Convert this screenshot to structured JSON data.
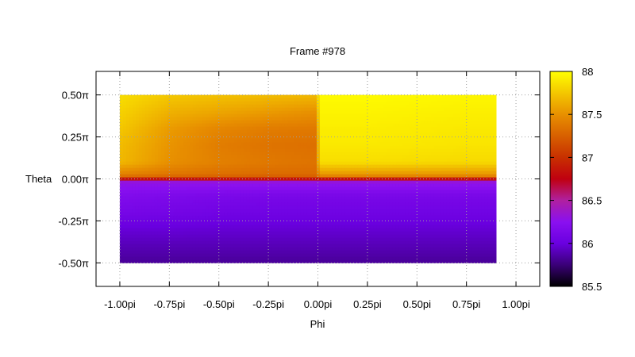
{
  "chart_data": {
    "type": "heatmap",
    "title": "Frame #978",
    "xlabel": "Phi",
    "ylabel": "Theta",
    "x_ticks": [
      "-1.00pi",
      "-0.75pi",
      "-0.50pi",
      "-0.25pi",
      "0.00pi",
      "0.25pi",
      "0.50pi",
      "0.75pi",
      "1.00pi"
    ],
    "y_ticks": [
      "0.50π",
      "0.25π",
      "0.00π",
      "-0.25π",
      "-0.50π"
    ],
    "xlim": [
      -1.12,
      1.12
    ],
    "ylim": [
      -0.64,
      0.64
    ],
    "data_extent": {
      "x": [
        -1.0,
        0.9
      ],
      "y": [
        -0.5,
        0.5
      ]
    },
    "grid": true,
    "colorbar": {
      "ticks": [
        "88",
        "87.5",
        "87",
        "86.5",
        "86",
        "85.5"
      ],
      "range": [
        85.5,
        88.0
      ],
      "colormap": [
        {
          "value": 85.5,
          "color": "#000000"
        },
        {
          "value": 85.75,
          "color": "#3a0078"
        },
        {
          "value": 86.0,
          "color": "#6a00e0"
        },
        {
          "value": 86.25,
          "color": "#8a10f0"
        },
        {
          "value": 86.5,
          "color": "#b020a0"
        },
        {
          "value": 86.75,
          "color": "#c00010"
        },
        {
          "value": 87.0,
          "color": "#c83000"
        },
        {
          "value": 87.5,
          "color": "#e89000"
        },
        {
          "value": 88.0,
          "color": "#ffff00"
        }
      ]
    },
    "theta_values": [
      0.5,
      0.4,
      0.3,
      0.2,
      0.1,
      0.02,
      0.0,
      -0.02,
      -0.1,
      -0.2,
      -0.3,
      -0.4,
      -0.5
    ],
    "phi_values": [
      -1.0,
      -0.75,
      -0.5,
      -0.25,
      -0.01,
      0.01,
      0.25,
      0.5,
      0.75,
      0.9
    ],
    "z_values": [
      [
        87.85,
        87.75,
        87.72,
        87.7,
        87.68,
        87.98,
        87.98,
        87.97,
        87.96,
        87.96
      ],
      [
        87.8,
        87.65,
        87.6,
        87.55,
        87.5,
        87.95,
        87.95,
        87.94,
        87.93,
        87.93
      ],
      [
        87.75,
        87.55,
        87.45,
        87.4,
        87.38,
        87.92,
        87.92,
        87.91,
        87.9,
        87.9
      ],
      [
        87.7,
        87.52,
        87.4,
        87.35,
        87.33,
        87.9,
        87.9,
        87.89,
        87.88,
        87.88
      ],
      [
        87.68,
        87.5,
        87.42,
        87.38,
        87.35,
        87.85,
        87.85,
        87.84,
        87.83,
        87.83
      ],
      [
        87.4,
        87.35,
        87.32,
        87.3,
        87.3,
        87.5,
        87.5,
        87.5,
        87.5,
        87.5
      ],
      [
        86.85,
        86.85,
        86.85,
        86.85,
        86.85,
        86.85,
        86.85,
        86.85,
        86.85,
        86.85
      ],
      [
        86.3,
        86.3,
        86.3,
        86.3,
        86.3,
        86.3,
        86.3,
        86.3,
        86.3,
        86.3
      ],
      [
        86.18,
        86.15,
        86.13,
        86.12,
        86.12,
        86.12,
        86.12,
        86.12,
        86.12,
        86.12
      ],
      [
        86.1,
        86.08,
        86.06,
        86.05,
        86.05,
        86.05,
        86.05,
        86.05,
        86.05,
        86.05
      ],
      [
        85.98,
        85.98,
        85.97,
        85.97,
        85.97,
        85.97,
        85.97,
        85.97,
        85.97,
        85.97
      ],
      [
        85.9,
        85.9,
        85.9,
        85.9,
        85.9,
        85.9,
        85.9,
        85.9,
        85.9,
        85.9
      ],
      [
        85.83,
        85.83,
        85.83,
        85.83,
        85.83,
        85.83,
        85.83,
        85.83,
        85.83,
        85.83
      ]
    ]
  }
}
